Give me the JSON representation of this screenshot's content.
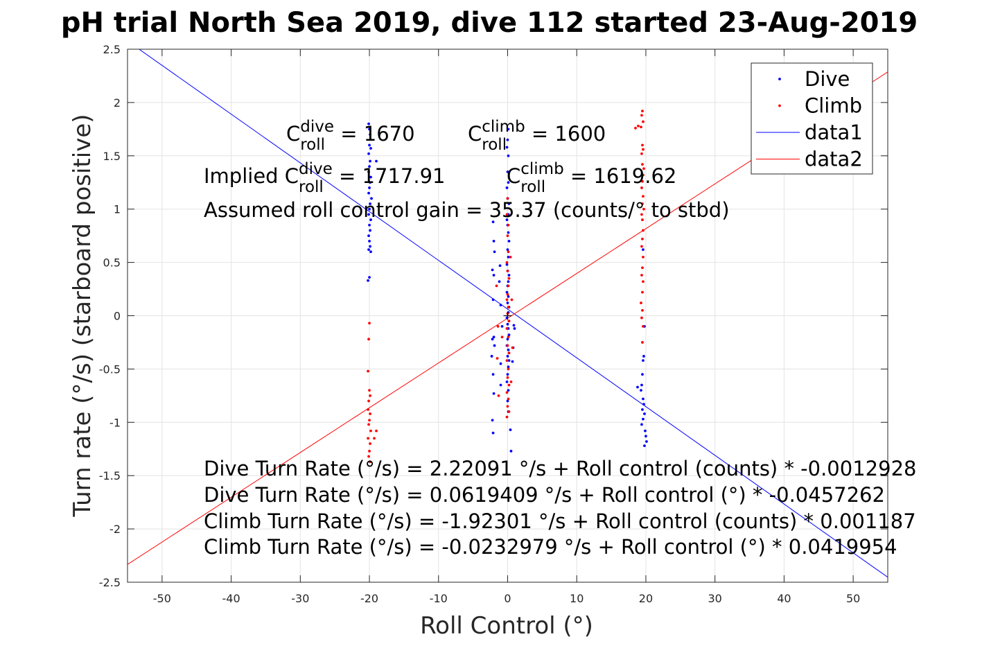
{
  "chart_data": {
    "type": "scatter",
    "title": "pH trial North Sea 2019, dive 112 started 23-Aug-2019",
    "xlabel": "Roll Control (°)",
    "ylabel": "Turn rate (°/s) (starboard positive)",
    "xlim": [
      -55,
      55
    ],
    "ylim": [
      -2.5,
      2.5
    ],
    "xticks": [
      -50,
      -40,
      -30,
      -20,
      -10,
      0,
      10,
      20,
      30,
      40,
      50
    ],
    "yticks": [
      -2.5,
      -2,
      -1.5,
      -1,
      -0.5,
      0,
      0.5,
      1,
      1.5,
      2,
      2.5
    ],
    "xtick_labels": [
      "-50",
      "-40",
      "-30",
      "-20",
      "-10",
      "0",
      "10",
      "20",
      "30",
      "40",
      "50"
    ],
    "ytick_labels": [
      "-2.5",
      "-2",
      "-1.5",
      "-1",
      "-0.5",
      "0",
      "0.5",
      "1",
      "1.5",
      "2",
      "2.5"
    ],
    "grid": true,
    "legend_position": "top-right",
    "series": [
      {
        "name": "Dive",
        "kind": "scatter",
        "color": "#0000ff",
        "points": [
          [
            -20.1,
            1.8
          ],
          [
            -20.0,
            1.75
          ],
          [
            -19.9,
            1.7
          ],
          [
            -20.0,
            1.6
          ],
          [
            -19.8,
            1.57
          ],
          [
            -20.1,
            1.52
          ],
          [
            -19.9,
            1.45
          ],
          [
            -20.0,
            1.4
          ],
          [
            -20.1,
            1.35
          ],
          [
            -19.8,
            1.3
          ],
          [
            -19.9,
            1.25
          ],
          [
            -20.0,
            1.2
          ],
          [
            -20.1,
            1.15
          ],
          [
            -19.7,
            1.1
          ],
          [
            -19.9,
            1.05
          ],
          [
            -20.0,
            1.0
          ],
          [
            -20.1,
            0.95
          ],
          [
            -19.8,
            0.9
          ],
          [
            -20.0,
            0.85
          ],
          [
            -19.9,
            0.8
          ],
          [
            -20.1,
            0.75
          ],
          [
            -20.0,
            0.7
          ],
          [
            -19.9,
            0.65
          ],
          [
            -20.1,
            0.62
          ],
          [
            -19.8,
            0.6
          ],
          [
            -20.0,
            0.36
          ],
          [
            -20.2,
            0.33
          ],
          [
            -19.0,
            1.45
          ],
          [
            0.1,
            1.75
          ],
          [
            0.0,
            1.65
          ],
          [
            -0.1,
            1.58
          ],
          [
            0.1,
            1.5
          ],
          [
            0.0,
            1.35
          ],
          [
            0.1,
            1.25
          ],
          [
            -0.1,
            1.2
          ],
          [
            0.0,
            1.1
          ],
          [
            0.2,
            1.05
          ],
          [
            0.1,
            0.95
          ],
          [
            -0.1,
            0.9
          ],
          [
            0.0,
            0.85
          ],
          [
            0.1,
            0.78
          ],
          [
            0.2,
            0.7
          ],
          [
            0.0,
            0.62
          ],
          [
            0.1,
            0.55
          ],
          [
            -0.1,
            0.48
          ],
          [
            0.0,
            0.42
          ],
          [
            0.2,
            0.38
          ],
          [
            0.1,
            0.32
          ],
          [
            0.0,
            0.28
          ],
          [
            -0.1,
            0.22
          ],
          [
            0.1,
            0.18
          ],
          [
            0.0,
            0.12
          ],
          [
            0.2,
            0.08
          ],
          [
            0.1,
            0.03
          ],
          [
            -0.1,
            -0.02
          ],
          [
            0.0,
            -0.08
          ],
          [
            0.1,
            -0.12
          ],
          [
            0.2,
            -0.18
          ],
          [
            0.0,
            -0.22
          ],
          [
            -0.1,
            -0.28
          ],
          [
            0.1,
            -0.32
          ],
          [
            0.0,
            -0.38
          ],
          [
            0.2,
            -0.42
          ],
          [
            0.1,
            -0.48
          ],
          [
            0.0,
            -0.55
          ],
          [
            -0.1,
            -0.62
          ],
          [
            0.1,
            -0.7
          ],
          [
            0.0,
            -0.8
          ],
          [
            0.1,
            -0.9
          ],
          [
            0.4,
            -1.07
          ],
          [
            0.5,
            -1.27
          ],
          [
            -2.1,
            0.88
          ],
          [
            -2.0,
            0.7
          ],
          [
            -1.9,
            0.6
          ],
          [
            -2.2,
            0.43
          ],
          [
            -2.0,
            0.38
          ],
          [
            -1.1,
            0.47
          ],
          [
            -1.2,
            0.32
          ],
          [
            -2.1,
            0.15
          ],
          [
            -1.0,
            0.1
          ],
          [
            -0.8,
            -0.1
          ],
          [
            -2.2,
            -0.22
          ],
          [
            -2.0,
            -0.2
          ],
          [
            -1.9,
            -0.28
          ],
          [
            -2.3,
            -0.38
          ],
          [
            -1.0,
            -0.45
          ],
          [
            -2.1,
            -0.55
          ],
          [
            -1.0,
            -0.65
          ],
          [
            -2.0,
            -0.73
          ],
          [
            -2.2,
            -0.98
          ],
          [
            -2.1,
            -1.1
          ],
          [
            0.9,
            -0.09
          ],
          [
            0.8,
            -0.3
          ],
          [
            0.7,
            -0.43
          ],
          [
            1.0,
            -0.12
          ],
          [
            19.6,
            0.62
          ],
          [
            19.8,
            -0.1
          ],
          [
            19.7,
            -0.38
          ],
          [
            19.6,
            -0.42
          ],
          [
            19.5,
            -0.55
          ],
          [
            19.4,
            -0.65
          ],
          [
            19.3,
            -0.7
          ],
          [
            19.6,
            -0.78
          ],
          [
            19.7,
            -0.83
          ],
          [
            19.5,
            -0.88
          ],
          [
            19.8,
            -0.92
          ],
          [
            19.6,
            -0.97
          ],
          [
            19.4,
            -1.02
          ],
          [
            19.9,
            -1.08
          ],
          [
            20.0,
            -1.13
          ],
          [
            20.1,
            -1.18
          ],
          [
            19.8,
            -1.22
          ],
          [
            18.8,
            -0.67
          ]
        ]
      },
      {
        "name": "Climb",
        "kind": "scatter",
        "color": "#ff0000",
        "points": [
          [
            19.5,
            1.92
          ],
          [
            19.4,
            1.88
          ],
          [
            19.6,
            1.82
          ],
          [
            19.3,
            1.77
          ],
          [
            18.9,
            1.78
          ],
          [
            18.5,
            1.76
          ],
          [
            19.5,
            1.6
          ],
          [
            19.6,
            1.56
          ],
          [
            19.4,
            1.52
          ],
          [
            19.5,
            1.42
          ],
          [
            19.7,
            1.38
          ],
          [
            19.6,
            1.32
          ],
          [
            19.5,
            1.26
          ],
          [
            19.4,
            1.2
          ],
          [
            19.6,
            1.12
          ],
          [
            19.5,
            1.05
          ],
          [
            19.7,
            1.0
          ],
          [
            19.4,
            0.95
          ],
          [
            19.5,
            0.9
          ],
          [
            19.6,
            0.8
          ],
          [
            19.5,
            0.72
          ],
          [
            19.4,
            0.65
          ],
          [
            19.6,
            0.55
          ],
          [
            19.5,
            0.45
          ],
          [
            19.4,
            0.38
          ],
          [
            19.6,
            0.32
          ],
          [
            19.5,
            0.22
          ],
          [
            19.3,
            0.12
          ],
          [
            19.5,
            0.05
          ],
          [
            19.4,
            -0.02
          ],
          [
            19.6,
            -0.1
          ],
          [
            19.5,
            -0.25
          ],
          [
            0.0,
            1.1
          ],
          [
            -0.1,
            0.95
          ],
          [
            0.1,
            0.85
          ],
          [
            0.0,
            0.75
          ],
          [
            0.1,
            0.6
          ],
          [
            -0.1,
            0.5
          ],
          [
            0.0,
            0.42
          ],
          [
            0.2,
            0.35
          ],
          [
            0.1,
            0.28
          ],
          [
            0.0,
            0.2
          ],
          [
            -0.1,
            0.15
          ],
          [
            0.1,
            0.08
          ],
          [
            0.0,
            0.02
          ],
          [
            0.2,
            -0.05
          ],
          [
            -0.1,
            -0.12
          ],
          [
            0.1,
            -0.2
          ],
          [
            0.0,
            -0.28
          ],
          [
            0.2,
            -0.35
          ],
          [
            -0.1,
            -0.42
          ],
          [
            0.1,
            -0.5
          ],
          [
            0.0,
            -0.58
          ],
          [
            0.2,
            -0.65
          ],
          [
            -0.1,
            -0.72
          ],
          [
            0.1,
            -0.78
          ],
          [
            0.0,
            -0.85
          ],
          [
            0.2,
            -0.9
          ],
          [
            -0.1,
            -0.95
          ],
          [
            -1.4,
            -0.1
          ],
          [
            -1.5,
            -0.4
          ],
          [
            -1.3,
            -0.75
          ],
          [
            -1.6,
            0.28
          ],
          [
            -0.8,
            -0.2
          ],
          [
            0.6,
            0.15
          ],
          [
            0.7,
            -0.3
          ],
          [
            0.5,
            -0.62
          ],
          [
            0.4,
            0.55
          ],
          [
            -20.0,
            -0.07
          ],
          [
            -20.1,
            -0.22
          ],
          [
            -20.2,
            -0.52
          ],
          [
            -20.0,
            -0.7
          ],
          [
            -19.9,
            -0.75
          ],
          [
            -20.1,
            -0.8
          ],
          [
            -20.2,
            -0.88
          ],
          [
            -19.9,
            -0.92
          ],
          [
            -20.0,
            -0.98
          ],
          [
            -20.1,
            -1.02
          ],
          [
            -19.8,
            -1.08
          ],
          [
            -20.2,
            -1.15
          ],
          [
            -19.9,
            -1.2
          ],
          [
            -20.0,
            -1.27
          ],
          [
            -20.1,
            -1.32
          ],
          [
            -19.9,
            -1.37
          ],
          [
            -19.0,
            -1.08
          ],
          [
            -19.3,
            -1.15
          ]
        ]
      },
      {
        "name": "data1",
        "kind": "line",
        "color": "#0000ff",
        "points": [
          [
            -55,
            2.5768
          ],
          [
            55,
            -2.453
          ]
        ]
      },
      {
        "name": "data2",
        "kind": "line",
        "color": "#ff0000",
        "points": [
          [
            -55,
            -2.333
          ],
          [
            55,
            2.2865
          ]
        ]
      }
    ],
    "annotations": [
      {
        "id": "c-dive",
        "parts": [
          {
            "t": "C",
            "s": "n"
          },
          {
            "t": "dive",
            "s": "sup"
          },
          {
            "t": "roll",
            "s": "sub"
          },
          {
            "t": " = 1670",
            "s": "n"
          }
        ]
      },
      {
        "id": "c-climb",
        "parts": [
          {
            "t": "C",
            "s": "n"
          },
          {
            "t": "climb",
            "s": "sup"
          },
          {
            "t": "roll",
            "s": "sub"
          },
          {
            "t": " = 1600",
            "s": "n"
          }
        ]
      },
      {
        "id": "implied-dive",
        "parts": [
          {
            "t": "Implied C",
            "s": "n"
          },
          {
            "t": "dive",
            "s": "sup"
          },
          {
            "t": "roll",
            "s": "sub"
          },
          {
            "t": " = 1717.91",
            "s": "n"
          }
        ]
      },
      {
        "id": "implied-climb",
        "parts": [
          {
            "t": "C",
            "s": "n"
          },
          {
            "t": "climb",
            "s": "sup"
          },
          {
            "t": "roll",
            "s": "sub"
          },
          {
            "t": " = 1619.62",
            "s": "n"
          }
        ]
      },
      {
        "id": "gain",
        "parts": [
          {
            "t": "Assumed roll control gain = 35.37 (counts/° to stbd)",
            "s": "n"
          }
        ]
      },
      {
        "id": "eq1",
        "parts": [
          {
            "t": "Dive Turn Rate (°/s) = 2.22091 °/s + Roll control (counts) * -0.0012928",
            "s": "n"
          }
        ]
      },
      {
        "id": "eq2",
        "parts": [
          {
            "t": "Dive Turn Rate (°/s) = 0.0619409 °/s + Roll control (°) * -0.0457262",
            "s": "n"
          }
        ]
      },
      {
        "id": "eq3",
        "parts": [
          {
            "t": "Climb Turn Rate (°/s) = -1.92301 °/s + Roll control (counts) * 0.001187",
            "s": "n"
          }
        ]
      },
      {
        "id": "eq4",
        "parts": [
          {
            "t": "Climb Turn Rate (°/s) = -0.0232979 °/s + Roll control (°) * 0.0419954",
            "s": "n"
          }
        ]
      }
    ]
  }
}
